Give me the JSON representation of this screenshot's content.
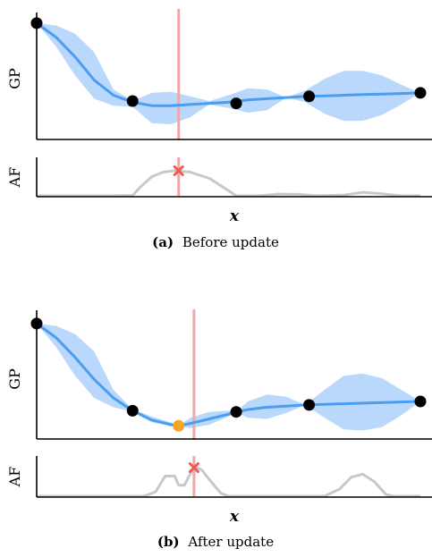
{
  "chart_data": [
    {
      "type": "line",
      "panel": "(a)",
      "caption_label": "(a)",
      "caption_text": "Before update",
      "xlabel": "x",
      "gp_ylabel": "GP",
      "af_ylabel": "AF",
      "xlim": [
        0,
        1
      ],
      "gp_ylim": [
        0,
        1
      ],
      "af_ylim": [
        0,
        1
      ],
      "grid": false,
      "colors": {
        "mean": "#4a9df0",
        "band": "#b9d8fb",
        "obs": "#000000",
        "af": "#c8c8c8",
        "proposal": "#f2a6a6",
        "marker": "#f05a5a"
      },
      "gp_mean": [
        [
          0.0,
          0.97
        ],
        [
          0.05,
          0.85
        ],
        [
          0.1,
          0.68
        ],
        [
          0.15,
          0.48
        ],
        [
          0.2,
          0.35
        ],
        [
          0.25,
          0.29
        ],
        [
          0.3,
          0.26
        ],
        [
          0.35,
          0.26
        ],
        [
          0.4,
          0.27
        ],
        [
          0.45,
          0.28
        ],
        [
          0.5,
          0.29
        ],
        [
          0.55,
          0.31
        ],
        [
          0.6,
          0.32
        ],
        [
          0.65,
          0.33
        ],
        [
          0.7,
          0.34
        ],
        [
          0.75,
          0.345
        ],
        [
          0.8,
          0.35
        ],
        [
          0.85,
          0.355
        ],
        [
          0.9,
          0.36
        ],
        [
          0.95,
          0.365
        ],
        [
          1.0,
          0.37
        ]
      ],
      "gp_band_upper": [
        [
          0.0,
          0.97
        ],
        [
          0.05,
          0.95
        ],
        [
          0.1,
          0.88
        ],
        [
          0.15,
          0.72
        ],
        [
          0.2,
          0.4
        ],
        [
          0.25,
          0.3
        ],
        [
          0.3,
          0.37
        ],
        [
          0.35,
          0.38
        ],
        [
          0.4,
          0.34
        ],
        [
          0.45,
          0.3
        ],
        [
          0.5,
          0.35
        ],
        [
          0.55,
          0.41
        ],
        [
          0.6,
          0.4
        ],
        [
          0.65,
          0.33
        ],
        [
          0.7,
          0.39
        ],
        [
          0.75,
          0.49
        ],
        [
          0.8,
          0.56
        ],
        [
          0.85,
          0.56
        ],
        [
          0.9,
          0.52
        ],
        [
          0.95,
          0.44
        ],
        [
          1.0,
          0.37
        ]
      ],
      "gp_band_lower": [
        [
          0.0,
          0.97
        ],
        [
          0.05,
          0.77
        ],
        [
          0.1,
          0.52
        ],
        [
          0.15,
          0.32
        ],
        [
          0.2,
          0.26
        ],
        [
          0.25,
          0.25
        ],
        [
          0.3,
          0.11
        ],
        [
          0.35,
          0.1
        ],
        [
          0.4,
          0.16
        ],
        [
          0.45,
          0.27
        ],
        [
          0.5,
          0.24
        ],
        [
          0.55,
          0.2
        ],
        [
          0.6,
          0.22
        ],
        [
          0.65,
          0.33
        ],
        [
          0.7,
          0.29
        ],
        [
          0.75,
          0.19
        ],
        [
          0.8,
          0.13
        ],
        [
          0.85,
          0.13
        ],
        [
          0.9,
          0.18
        ],
        [
          0.95,
          0.27
        ],
        [
          1.0,
          0.37
        ]
      ],
      "observations": [
        [
          0.0,
          0.97
        ],
        [
          0.25,
          0.3
        ],
        [
          0.52,
          0.28
        ],
        [
          0.71,
          0.34
        ],
        [
          1.0,
          0.37
        ]
      ],
      "proposal_x": 0.37,
      "acquisition": [
        [
          0.0,
          0.0
        ],
        [
          0.1,
          0.0
        ],
        [
          0.2,
          0.0
        ],
        [
          0.25,
          0.01
        ],
        [
          0.27,
          0.25
        ],
        [
          0.3,
          0.55
        ],
        [
          0.33,
          0.68
        ],
        [
          0.36,
          0.72
        ],
        [
          0.4,
          0.68
        ],
        [
          0.45,
          0.5
        ],
        [
          0.5,
          0.15
        ],
        [
          0.52,
          0.0
        ],
        [
          0.58,
          0.0
        ],
        [
          0.63,
          0.05
        ],
        [
          0.68,
          0.04
        ],
        [
          0.73,
          0.0
        ],
        [
          0.8,
          0.02
        ],
        [
          0.85,
          0.1
        ],
        [
          0.9,
          0.06
        ],
        [
          0.95,
          0.0
        ],
        [
          1.0,
          0.0
        ]
      ],
      "acq_max": [
        0.37,
        0.72
      ]
    },
    {
      "type": "line",
      "panel": "(b)",
      "caption_label": "(b)",
      "caption_text": "After update",
      "xlabel": "x",
      "gp_ylabel": "GP",
      "af_ylabel": "AF",
      "xlim": [
        0,
        1
      ],
      "gp_ylim": [
        0,
        1
      ],
      "af_ylim": [
        0,
        1
      ],
      "grid": false,
      "colors": {
        "mean": "#4a9df0",
        "band": "#b9d8fb",
        "obs": "#000000",
        "new_obs": "#f5a623",
        "af": "#c8c8c8",
        "proposal": "#f2a6a6",
        "marker": "#f05a5a"
      },
      "gp_mean": [
        [
          0.0,
          0.97
        ],
        [
          0.05,
          0.85
        ],
        [
          0.1,
          0.68
        ],
        [
          0.15,
          0.49
        ],
        [
          0.2,
          0.33
        ],
        [
          0.25,
          0.22
        ],
        [
          0.3,
          0.14
        ],
        [
          0.35,
          0.1
        ],
        [
          0.37,
          0.09
        ],
        [
          0.4,
          0.11
        ],
        [
          0.45,
          0.15
        ],
        [
          0.5,
          0.19
        ],
        [
          0.52,
          0.21
        ],
        [
          0.55,
          0.23
        ],
        [
          0.6,
          0.25
        ],
        [
          0.65,
          0.26
        ],
        [
          0.7,
          0.27
        ],
        [
          0.75,
          0.275
        ],
        [
          0.8,
          0.28
        ],
        [
          0.85,
          0.285
        ],
        [
          0.9,
          0.29
        ],
        [
          0.95,
          0.295
        ],
        [
          1.0,
          0.3
        ]
      ],
      "gp_band_upper": [
        [
          0.0,
          0.97
        ],
        [
          0.05,
          0.95
        ],
        [
          0.1,
          0.88
        ],
        [
          0.15,
          0.73
        ],
        [
          0.2,
          0.4
        ],
        [
          0.25,
          0.23
        ],
        [
          0.3,
          0.17
        ],
        [
          0.35,
          0.12
        ],
        [
          0.37,
          0.09
        ],
        [
          0.4,
          0.16
        ],
        [
          0.45,
          0.21
        ],
        [
          0.5,
          0.22
        ],
        [
          0.52,
          0.21
        ],
        [
          0.55,
          0.3
        ],
        [
          0.6,
          0.36
        ],
        [
          0.65,
          0.34
        ],
        [
          0.7,
          0.27
        ],
        [
          0.75,
          0.4
        ],
        [
          0.8,
          0.52
        ],
        [
          0.85,
          0.54
        ],
        [
          0.9,
          0.5
        ],
        [
          0.95,
          0.4
        ],
        [
          1.0,
          0.3
        ]
      ],
      "gp_band_lower": [
        [
          0.0,
          0.97
        ],
        [
          0.05,
          0.77
        ],
        [
          0.1,
          0.52
        ],
        [
          0.15,
          0.33
        ],
        [
          0.2,
          0.25
        ],
        [
          0.25,
          0.21
        ],
        [
          0.3,
          0.12
        ],
        [
          0.35,
          0.09
        ],
        [
          0.37,
          0.09
        ],
        [
          0.4,
          0.07
        ],
        [
          0.45,
          0.1
        ],
        [
          0.5,
          0.17
        ],
        [
          0.52,
          0.21
        ],
        [
          0.55,
          0.16
        ],
        [
          0.6,
          0.15
        ],
        [
          0.65,
          0.2
        ],
        [
          0.7,
          0.27
        ],
        [
          0.75,
          0.16
        ],
        [
          0.8,
          0.06
        ],
        [
          0.85,
          0.05
        ],
        [
          0.9,
          0.08
        ],
        [
          0.95,
          0.18
        ],
        [
          1.0,
          0.3
        ]
      ],
      "observations": [
        [
          0.0,
          0.97
        ],
        [
          0.25,
          0.22
        ],
        [
          0.52,
          0.21
        ],
        [
          0.71,
          0.27
        ],
        [
          1.0,
          0.3
        ]
      ],
      "new_observation": [
        0.37,
        0.09
      ],
      "proposal_x": 0.41,
      "acquisition": [
        [
          0.0,
          0.0
        ],
        [
          0.2,
          0.0
        ],
        [
          0.28,
          0.0
        ],
        [
          0.31,
          0.12
        ],
        [
          0.335,
          0.55
        ],
        [
          0.36,
          0.55
        ],
        [
          0.37,
          0.3
        ],
        [
          0.385,
          0.3
        ],
        [
          0.4,
          0.6
        ],
        [
          0.415,
          0.78
        ],
        [
          0.43,
          0.72
        ],
        [
          0.45,
          0.45
        ],
        [
          0.48,
          0.08
        ],
        [
          0.5,
          0.0
        ],
        [
          0.7,
          0.0
        ],
        [
          0.75,
          0.0
        ],
        [
          0.79,
          0.2
        ],
        [
          0.82,
          0.52
        ],
        [
          0.85,
          0.6
        ],
        [
          0.88,
          0.4
        ],
        [
          0.91,
          0.05
        ],
        [
          0.93,
          0.0
        ],
        [
          1.0,
          0.0
        ]
      ],
      "acq_max": [
        0.41,
        0.78
      ]
    }
  ]
}
